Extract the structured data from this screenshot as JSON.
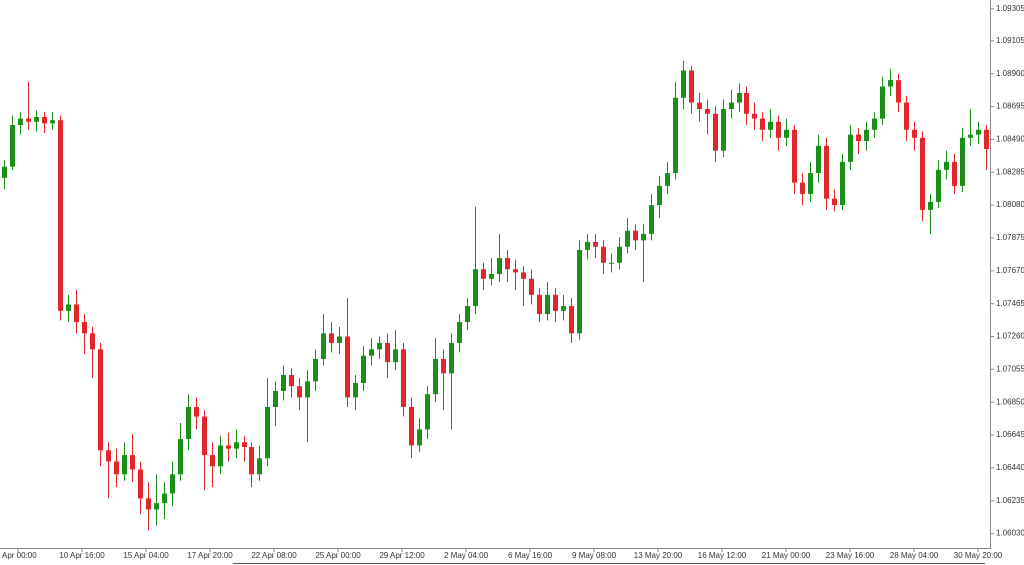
{
  "chart_data": {
    "type": "candlestick",
    "up_color": "#1a8f1a",
    "down_color": "#e3262b",
    "ylim": [
      1.0594,
      1.0936
    ],
    "yticks": [
      {
        "value": 1.0603,
        "label": "1.06030"
      },
      {
        "value": 1.06235,
        "label": "1.06235"
      },
      {
        "value": 1.0644,
        "label": "1.06440"
      },
      {
        "value": 1.06645,
        "label": "1.06645"
      },
      {
        "value": 1.0685,
        "label": "1.06850"
      },
      {
        "value": 1.07055,
        "label": "1.07055"
      },
      {
        "value": 1.0726,
        "label": "1.07260"
      },
      {
        "value": 1.07465,
        "label": "1.07465"
      },
      {
        "value": 1.0767,
        "label": "1.07670"
      },
      {
        "value": 1.07875,
        "label": "1.07875"
      },
      {
        "value": 1.0808,
        "label": "1.08080"
      },
      {
        "value": 1.08285,
        "label": "1.08285"
      },
      {
        "value": 1.0849,
        "label": "1.08490"
      },
      {
        "value": 1.08695,
        "label": "1.08695"
      },
      {
        "value": 1.089,
        "label": "1.08900"
      },
      {
        "value": 1.09105,
        "label": "1.09105"
      },
      1.09305
    ],
    "xticks": [
      "Apr 00:00",
      "10 Apr 16:00",
      "15 Apr 04:00",
      "17 Apr 20:00",
      "22 Apr 08:00",
      "25 Apr 00:00",
      "29 Apr 12:00",
      "2 May 04:00",
      "6 May 16:00",
      "9 May 08:00",
      "13 May 20:00",
      "16 May 12:00",
      "21 May 00:00",
      "23 May 16:00",
      "28 May 04:00",
      "30 May 20:00"
    ],
    "ohlc": [
      [
        1.0825,
        1.0836,
        1.0818,
        1.0832
      ],
      [
        1.0832,
        1.0864,
        1.083,
        1.0858
      ],
      [
        1.0858,
        1.0866,
        1.0852,
        1.0862
      ],
      [
        1.0862,
        1.0885,
        1.0855,
        1.086
      ],
      [
        1.086,
        1.0867,
        1.0854,
        1.0863
      ],
      [
        1.0863,
        1.0866,
        1.0853,
        1.0859
      ],
      [
        1.0859,
        1.0866,
        1.0855,
        1.0861
      ],
      [
        1.0861,
        1.0864,
        1.0736,
        1.0742
      ],
      [
        1.0742,
        1.0752,
        1.0735,
        1.0746
      ],
      [
        1.0746,
        1.0755,
        1.0728,
        1.0735
      ],
      [
        1.0735,
        1.074,
        1.0715,
        1.0728
      ],
      [
        1.0728,
        1.0732,
        1.07,
        1.0718
      ],
      [
        1.0718,
        1.0722,
        1.0645,
        1.0655
      ],
      [
        1.0655,
        1.066,
        1.0625,
        1.0648
      ],
      [
        1.0648,
        1.0656,
        1.0632,
        1.064
      ],
      [
        1.064,
        1.066,
        1.0636,
        1.0652
      ],
      [
        1.0652,
        1.0665,
        1.0635,
        1.0643
      ],
      [
        1.0643,
        1.0648,
        1.0615,
        1.0625
      ],
      [
        1.0625,
        1.0635,
        1.0605,
        1.0618
      ],
      [
        1.0618,
        1.064,
        1.0608,
        1.0622
      ],
      [
        1.0622,
        1.0635,
        1.0612,
        1.0628
      ],
      [
        1.0628,
        1.0648,
        1.062,
        1.064
      ],
      [
        1.064,
        1.0672,
        1.0636,
        1.0662
      ],
      [
        1.0662,
        1.069,
        1.0655,
        1.0682
      ],
      [
        1.0682,
        1.0688,
        1.0668,
        1.0676
      ],
      [
        1.0676,
        1.068,
        1.063,
        1.0652
      ],
      [
        1.0652,
        1.066,
        1.0632,
        1.0645
      ],
      [
        1.0645,
        1.0664,
        1.064,
        1.0658
      ],
      [
        1.0658,
        1.0666,
        1.0648,
        1.0656
      ],
      [
        1.0656,
        1.0668,
        1.065,
        1.066
      ],
      [
        1.066,
        1.0664,
        1.0648,
        1.0657
      ],
      [
        1.0657,
        1.066,
        1.0632,
        1.064
      ],
      [
        1.064,
        1.0658,
        1.0636,
        1.065
      ],
      [
        1.065,
        1.07,
        1.0645,
        1.0682
      ],
      [
        1.0682,
        1.0698,
        1.067,
        1.0692
      ],
      [
        1.0692,
        1.0708,
        1.0686,
        1.0702
      ],
      [
        1.0702,
        1.0706,
        1.0688,
        1.0695
      ],
      [
        1.0695,
        1.07,
        1.068,
        1.0688
      ],
      [
        1.0688,
        1.0705,
        1.066,
        1.0698
      ],
      [
        1.0698,
        1.0718,
        1.0692,
        1.0712
      ],
      [
        1.0712,
        1.074,
        1.0708,
        1.0728
      ],
      [
        1.0728,
        1.0735,
        1.0716,
        1.0722
      ],
      [
        1.0722,
        1.0732,
        1.0715,
        1.0726
      ],
      [
        1.0726,
        1.075,
        1.0682,
        1.0688
      ],
      [
        1.0688,
        1.0702,
        1.068,
        1.0697
      ],
      [
        1.0697,
        1.072,
        1.0692,
        1.0714
      ],
      [
        1.0714,
        1.0725,
        1.0708,
        1.0718
      ],
      [
        1.0718,
        1.0726,
        1.0712,
        1.0722
      ],
      [
        1.0722,
        1.0728,
        1.07,
        1.071
      ],
      [
        1.071,
        1.073,
        1.0705,
        1.0718
      ],
      [
        1.0718,
        1.0722,
        1.0676,
        1.0682
      ],
      [
        1.0682,
        1.0688,
        1.065,
        1.0658
      ],
      [
        1.0658,
        1.0675,
        1.0654,
        1.0668
      ],
      [
        1.0668,
        1.0695,
        1.0662,
        1.069
      ],
      [
        1.069,
        1.0725,
        1.0685,
        1.0712
      ],
      [
        1.0712,
        1.0718,
        1.068,
        1.0703
      ],
      [
        1.0703,
        1.0728,
        1.0668,
        1.0722
      ],
      [
        1.0722,
        1.074,
        1.0716,
        1.0735
      ],
      [
        1.0735,
        1.075,
        1.073,
        1.0745
      ],
      [
        1.0745,
        1.0807,
        1.074,
        1.0768
      ],
      [
        1.0768,
        1.0772,
        1.0755,
        1.0762
      ],
      [
        1.0762,
        1.0775,
        1.0758,
        1.0765
      ],
      [
        1.0765,
        1.079,
        1.076,
        1.0775
      ],
      [
        1.0775,
        1.078,
        1.076,
        1.0768
      ],
      [
        1.0768,
        1.0774,
        1.0755,
        1.0766
      ],
      [
        1.0766,
        1.077,
        1.0745,
        1.0762
      ],
      [
        1.0762,
        1.0768,
        1.0746,
        1.0752
      ],
      [
        1.0752,
        1.0756,
        1.0735,
        1.074
      ],
      [
        1.074,
        1.076,
        1.0736,
        1.0752
      ],
      [
        1.0752,
        1.0756,
        1.0735,
        1.0742
      ],
      [
        1.0742,
        1.0752,
        1.0736,
        1.0745
      ],
      [
        1.0745,
        1.075,
        1.0722,
        1.0728
      ],
      [
        1.0728,
        1.0786,
        1.0724,
        1.078
      ],
      [
        1.078,
        1.079,
        1.0774,
        1.0785
      ],
      [
        1.0785,
        1.079,
        1.0775,
        1.0782
      ],
      [
        1.0782,
        1.0786,
        1.0765,
        1.0772
      ],
      [
        1.0772,
        1.0778,
        1.0766,
        1.0772
      ],
      [
        1.0772,
        1.0788,
        1.0768,
        1.0782
      ],
      [
        1.0782,
        1.08,
        1.0778,
        1.0792
      ],
      [
        1.0792,
        1.0796,
        1.078,
        1.0786
      ],
      [
        1.0786,
        1.0796,
        1.076,
        1.079
      ],
      [
        1.079,
        1.0815,
        1.0786,
        1.0808
      ],
      [
        1.0808,
        1.0826,
        1.08,
        1.082
      ],
      [
        1.082,
        1.0835,
        1.0815,
        1.0828
      ],
      [
        1.0828,
        1.0885,
        1.0824,
        1.0875
      ],
      [
        1.0875,
        1.0898,
        1.0868,
        1.0892
      ],
      [
        1.0892,
        1.0895,
        1.0865,
        1.0872
      ],
      [
        1.0872,
        1.0878,
        1.086,
        1.0868
      ],
      [
        1.0868,
        1.0874,
        1.0852,
        1.0865
      ],
      [
        1.0865,
        1.087,
        1.0835,
        1.0842
      ],
      [
        1.0842,
        1.0874,
        1.0838,
        1.0868
      ],
      [
        1.0868,
        1.088,
        1.0862,
        1.0872
      ],
      [
        1.0872,
        1.0884,
        1.0866,
        1.0878
      ],
      [
        1.0878,
        1.0882,
        1.0858,
        1.0865
      ],
      [
        1.0865,
        1.0872,
        1.0855,
        1.0862
      ],
      [
        1.0862,
        1.0866,
        1.0848,
        1.0855
      ],
      [
        1.0855,
        1.0868,
        1.085,
        1.086
      ],
      [
        1.086,
        1.0864,
        1.0842,
        1.085
      ],
      [
        1.085,
        1.0862,
        1.0845,
        1.0855
      ],
      [
        1.0855,
        1.0858,
        1.0815,
        1.0822
      ],
      [
        1.0822,
        1.0828,
        1.0808,
        1.0815
      ],
      [
        1.0815,
        1.0835,
        1.081,
        1.0828
      ],
      [
        1.0828,
        1.0852,
        1.0822,
        1.0845
      ],
      [
        1.0845,
        1.085,
        1.0805,
        1.0812
      ],
      [
        1.0812,
        1.0818,
        1.0804,
        1.0808
      ],
      [
        1.0808,
        1.084,
        1.0805,
        1.0835
      ],
      [
        1.0835,
        1.0858,
        1.083,
        1.0852
      ],
      [
        1.0852,
        1.0856,
        1.084,
        1.0848
      ],
      [
        1.0848,
        1.086,
        1.0842,
        1.0855
      ],
      [
        1.0855,
        1.0866,
        1.085,
        1.0862
      ],
      [
        1.0862,
        1.0888,
        1.0858,
        1.0882
      ],
      [
        1.0882,
        1.0893,
        1.0876,
        1.0886
      ],
      [
        1.0886,
        1.089,
        1.0866,
        1.0872
      ],
      [
        1.0872,
        1.0876,
        1.0848,
        1.0855
      ],
      [
        1.0855,
        1.086,
        1.0842,
        1.085
      ],
      [
        1.085,
        1.0854,
        1.0798,
        1.0805
      ],
      [
        1.0805,
        1.0815,
        1.079,
        1.081
      ],
      [
        1.081,
        1.0836,
        1.0806,
        1.083
      ],
      [
        1.083,
        1.0842,
        1.0824,
        1.0835
      ],
      [
        1.0835,
        1.084,
        1.0815,
        1.082
      ],
      [
        1.082,
        1.0856,
        1.0816,
        1.085
      ],
      [
        1.085,
        1.0868,
        1.0845,
        1.0852
      ],
      [
        1.0852,
        1.086,
        1.0846,
        1.0855
      ],
      [
        1.0855,
        1.0858,
        1.083,
        1.0843
      ]
    ]
  }
}
